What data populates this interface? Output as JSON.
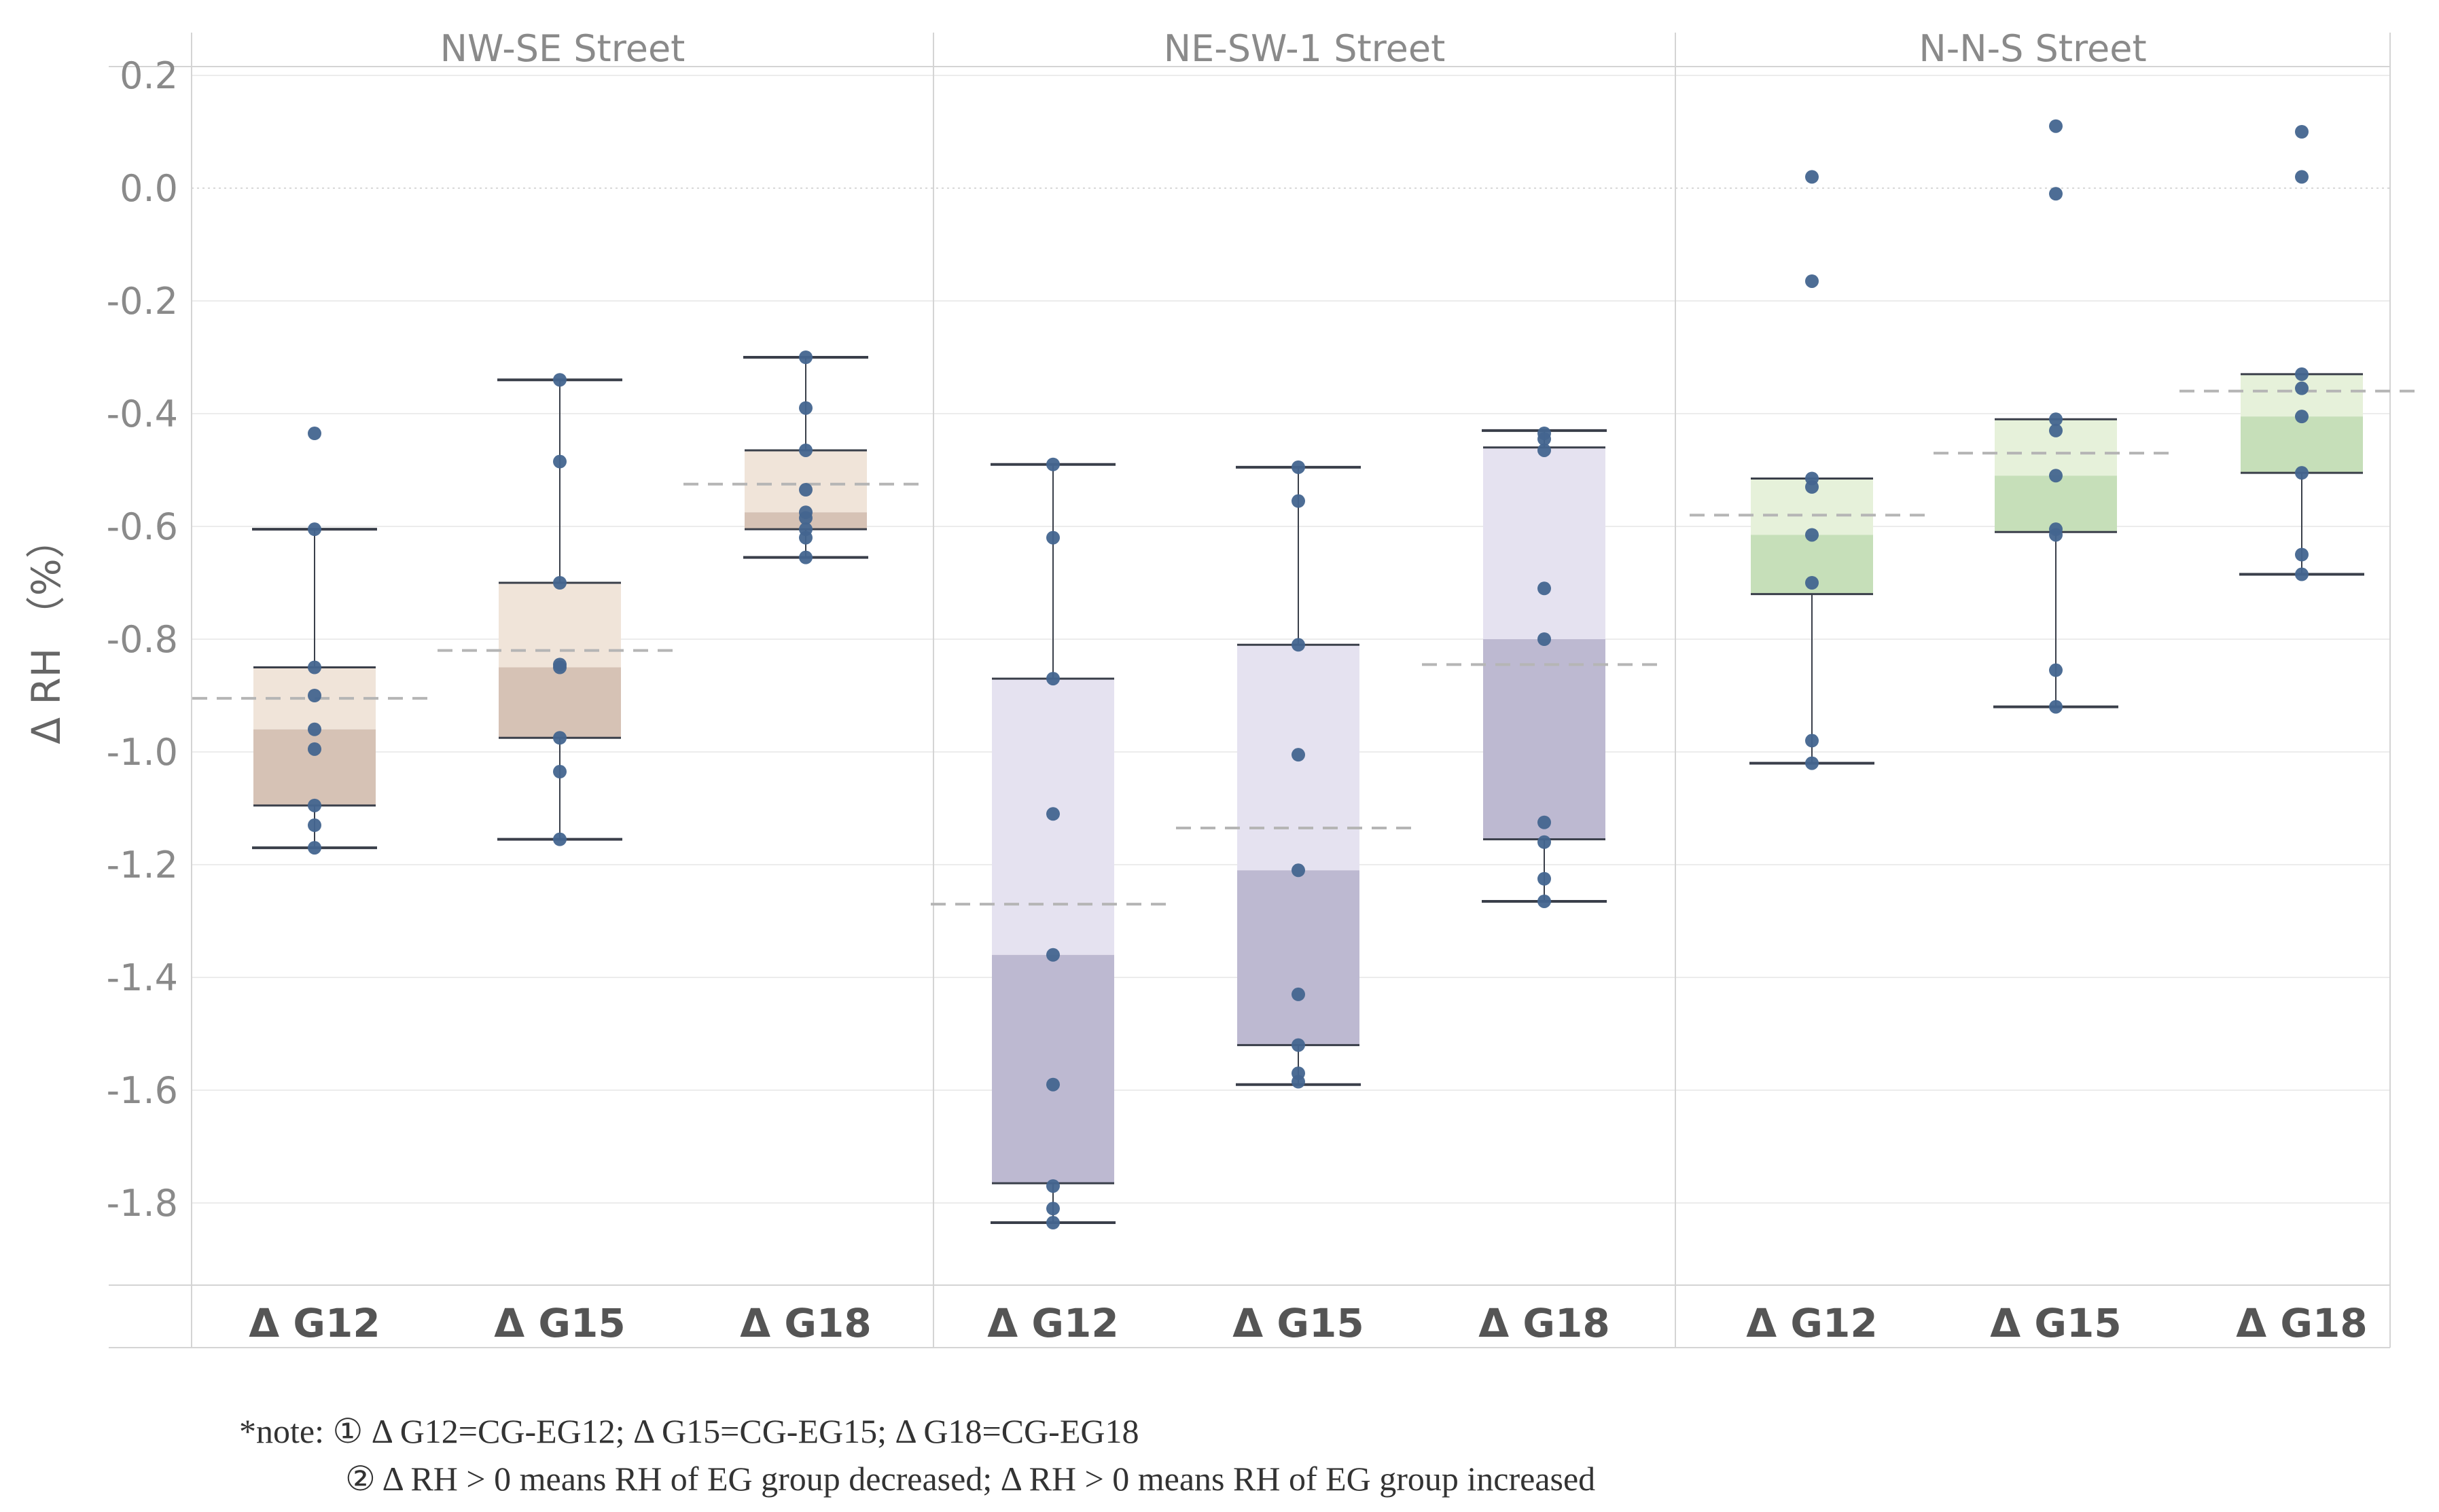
{
  "chart_data": {
    "type": "box",
    "title": "",
    "ylabel": "Δ RH （%）",
    "xlabel": "",
    "ylim": [
      -1.95,
      0.23
    ],
    "yticks": [
      0.2,
      0.0,
      -0.2,
      -0.4,
      -0.6,
      -0.8,
      -1.0,
      -1.2,
      -1.4,
      -1.6,
      -1.8
    ],
    "ytick_labels": [
      "0.2",
      "0.0",
      "-0.2",
      "-0.4",
      "-0.6",
      "-0.8",
      "-1.0",
      "-1.2",
      "-1.4",
      "-1.6",
      "-1.8"
    ],
    "categories": [
      "Δ G12",
      "Δ G15",
      "Δ G18"
    ],
    "panels": [
      {
        "title": "NW-SE Street",
        "groups": [
          {
            "label": "Δ G12",
            "q1": -1.095,
            "median": -0.96,
            "q3": -0.85,
            "whisker_low": -1.17,
            "whisker_high": -0.605,
            "mean": -0.905,
            "points": [
              -0.435,
              -0.605,
              -0.85,
              -0.9,
              -0.96,
              -0.995,
              -1.095,
              -1.13,
              -1.17
            ]
          },
          {
            "label": "Δ G15",
            "q1": -0.975,
            "median": -0.85,
            "q3": -0.7,
            "whisker_low": -1.155,
            "whisker_high": -0.34,
            "mean": -0.82,
            "points": [
              -0.34,
              -0.485,
              -0.7,
              -0.845,
              -0.85,
              -0.975,
              -1.035,
              -1.155
            ]
          },
          {
            "label": "Δ G18",
            "q1": -0.605,
            "median": -0.575,
            "q3": -0.465,
            "whisker_low": -0.655,
            "whisker_high": -0.3,
            "mean": -0.525,
            "points": [
              -0.3,
              -0.39,
              -0.465,
              -0.535,
              -0.575,
              -0.585,
              -0.605,
              -0.62,
              -0.655
            ]
          }
        ]
      },
      {
        "title": "NE-SW-1 Street",
        "groups": [
          {
            "label": "Δ G12",
            "q1": -1.765,
            "median": -1.36,
            "q3": -0.87,
            "whisker_low": -1.835,
            "whisker_high": -0.49,
            "mean": -1.27,
            "points": [
              -0.49,
              -0.62,
              -0.87,
              -1.11,
              -1.36,
              -1.59,
              -1.77,
              -1.81,
              -1.835
            ]
          },
          {
            "label": "Δ G15",
            "q1": -1.52,
            "median": -1.21,
            "q3": -0.81,
            "whisker_low": -1.59,
            "whisker_high": -0.495,
            "mean": -1.135,
            "points": [
              -0.495,
              -0.555,
              -0.81,
              -1.005,
              -1.21,
              -1.43,
              -1.52,
              -1.57,
              -1.585
            ]
          },
          {
            "label": "Δ G18",
            "q1": -1.155,
            "median": -0.8,
            "q3": -0.46,
            "whisker_low": -1.265,
            "whisker_high": -0.43,
            "mean": -0.845,
            "points": [
              -0.435,
              -0.445,
              -0.465,
              -0.71,
              -0.8,
              -1.125,
              -1.16,
              -1.225,
              -1.265
            ]
          }
        ]
      },
      {
        "title": "N-N-S Street",
        "groups": [
          {
            "label": "Δ G12",
            "q1": -0.72,
            "median": -0.615,
            "q3": -0.515,
            "whisker_low": -1.02,
            "whisker_high": -0.515,
            "mean": -0.58,
            "points": [
              0.02,
              -0.165,
              -0.515,
              -0.53,
              -0.615,
              -0.7,
              -0.98,
              -1.02
            ]
          },
          {
            "label": "Δ G15",
            "q1": -0.61,
            "median": -0.51,
            "q3": -0.41,
            "whisker_low": -0.92,
            "whisker_high": -0.41,
            "mean": -0.47,
            "points": [
              0.11,
              -0.01,
              -0.41,
              -0.43,
              -0.51,
              -0.605,
              -0.615,
              -0.855,
              -0.92
            ]
          },
          {
            "label": "Δ G18",
            "q1": -0.505,
            "median": -0.405,
            "q3": -0.33,
            "whisker_low": -0.685,
            "whisker_high": -0.33,
            "mean": -0.36,
            "points": [
              0.1,
              0.02,
              -0.33,
              -0.355,
              -0.405,
              -0.505,
              -0.65,
              -0.685
            ]
          }
        ]
      }
    ],
    "colors": {
      "nwse_light": "#f0e4d9",
      "nwse_dark": "#d6c2b5",
      "nesw_light": "#e5e2f0",
      "nesw_dark": "#bdb9d1",
      "nns_light": "#e6f1da",
      "nns_dark": "#c6dfb9",
      "point": "#43658f",
      "whisker": "#3a3f4a",
      "mean_line": "#b5b5b5",
      "grid": "#ececec",
      "divider": "#d4d4d4"
    },
    "grid": true,
    "legend": "none"
  },
  "notes": {
    "line1": "*note: ① Δ G12=CG-EG12; Δ G15=CG-EG15; Δ G18=CG-EG18",
    "line2": "② Δ RH > 0 means RH of EG group decreased; Δ RH > 0 means RH of EG group increased"
  }
}
